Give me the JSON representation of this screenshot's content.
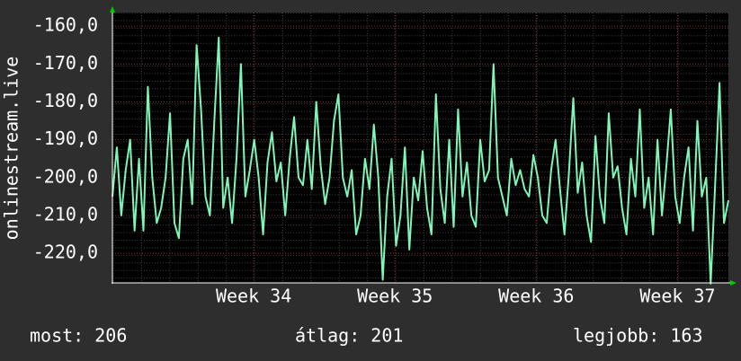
{
  "chart_data": {
    "type": "line",
    "y_label": "onlinestream.live",
    "xlim": [
      33.0,
      37.36
    ],
    "xticks": [
      {
        "value": 34,
        "label": "Week 34"
      },
      {
        "value": 35,
        "label": "Week 35"
      },
      {
        "value": 36,
        "label": "Week 36"
      },
      {
        "value": 37,
        "label": "Week 37"
      }
    ],
    "ylim": [
      -227.8,
      -156.4
    ],
    "yticks": [
      {
        "value": -220,
        "label": "-220,0"
      },
      {
        "value": -210,
        "label": "-210,0"
      },
      {
        "value": -200,
        "label": "-200,0"
      },
      {
        "value": -190,
        "label": "-190,0"
      },
      {
        "value": -180,
        "label": "-180,0"
      },
      {
        "value": -170,
        "label": "-170,0"
      },
      {
        "value": -160,
        "label": "-160,0"
      }
    ],
    "grid": true,
    "color": "#7ff5b8",
    "values": [
      -205,
      -192,
      -210,
      -198,
      -190,
      -214,
      -195,
      -214,
      -176,
      -200,
      -212,
      -208,
      -200,
      -183,
      -212,
      -216,
      -195,
      -190,
      -207,
      -165,
      -182,
      -205,
      -210,
      -185,
      -163,
      -208,
      -200,
      -212,
      -195,
      -170,
      -205,
      -198,
      -190,
      -200,
      -215,
      -196,
      -188,
      -201,
      -196,
      -210,
      -195,
      -184,
      -200,
      -202,
      -190,
      -203,
      -180,
      -197,
      -207,
      -200,
      -185,
      -178,
      -200,
      -205,
      -198,
      -215,
      -210,
      -195,
      -203,
      -186,
      -200,
      -227,
      -205,
      -195,
      -218,
      -210,
      -192,
      -219,
      -200,
      -206,
      -193,
      -208,
      -215,
      -178,
      -203,
      -212,
      -190,
      -213,
      -182,
      -205,
      -196,
      -210,
      -213,
      -190,
      -201,
      -198,
      -170,
      -200,
      -205,
      -210,
      -195,
      -202,
      -198,
      -203,
      -205,
      -194,
      -200,
      -210,
      -212,
      -198,
      -190,
      -203,
      -215,
      -199,
      -179,
      -204,
      -196,
      -210,
      -217,
      -189,
      -205,
      -212,
      -183,
      -200,
      -197,
      -208,
      -215,
      -195,
      -205,
      -182,
      -208,
      -200,
      -215,
      -190,
      -210,
      -197,
      -182,
      -205,
      -212,
      -200,
      -192,
      -214,
      -185,
      -205,
      -200,
      -228,
      -202,
      -175,
      -212,
      -206
    ],
    "footer": [
      "most: 206",
      "átlag: 201",
      "legjobb: 163"
    ]
  }
}
